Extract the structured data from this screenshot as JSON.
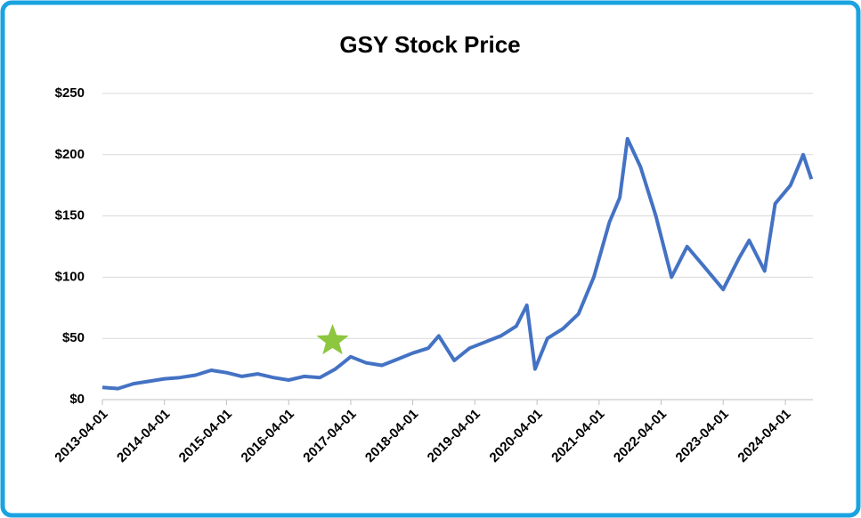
{
  "chart_data": {
    "type": "line",
    "title": "GSY Stock Price",
    "x": [
      "2013-04-01",
      "2013-07-01",
      "2013-10-01",
      "2014-01-01",
      "2014-04-01",
      "2014-07-01",
      "2014-10-01",
      "2015-01-01",
      "2015-04-01",
      "2015-07-01",
      "2015-10-01",
      "2016-01-01",
      "2016-04-01",
      "2016-07-01",
      "2016-10-01",
      "2017-01-01",
      "2017-04-01",
      "2017-07-01",
      "2017-10-01",
      "2018-01-01",
      "2018-04-01",
      "2018-07-01",
      "2018-09-01",
      "2018-12-01",
      "2019-03-01",
      "2019-06-01",
      "2019-09-01",
      "2019-12-01",
      "2020-02-01",
      "2020-03-20",
      "2020-06-01",
      "2020-09-01",
      "2020-12-01",
      "2021-03-01",
      "2021-06-01",
      "2021-08-01",
      "2021-09-15",
      "2021-12-01",
      "2022-03-01",
      "2022-06-01",
      "2022-09-01",
      "2022-12-01",
      "2023-04-01",
      "2023-07-01",
      "2023-09-01",
      "2023-12-01",
      "2024-02-01",
      "2024-05-01",
      "2024-07-15",
      "2024-09-01"
    ],
    "series": [
      {
        "color": "#4472c4",
        "values": [
          10,
          9,
          13,
          15,
          17,
          18,
          20,
          24,
          22,
          19,
          21,
          18,
          16,
          19,
          18,
          25,
          35,
          30,
          28,
          33,
          38,
          42,
          52,
          32,
          42,
          47,
          52,
          60,
          77,
          25,
          50,
          58,
          70,
          100,
          145,
          165,
          213,
          190,
          150,
          100,
          125,
          110,
          90,
          115,
          130,
          105,
          160,
          175,
          200,
          180
        ]
      }
    ],
    "xlim": [
      "2013-04-01",
      "2024-09-10"
    ],
    "xticks": [
      "2013-04-01",
      "2014-04-01",
      "2015-04-01",
      "2016-04-01",
      "2017-04-01",
      "2018-04-01",
      "2019-04-01",
      "2020-04-01",
      "2021-04-01",
      "2022-04-01",
      "2023-04-01",
      "2024-04-01"
    ],
    "ylim": [
      0,
      250
    ],
    "yticks": [
      {
        "value": 0,
        "label": "$0"
      },
      {
        "value": 50,
        "label": "$50"
      },
      {
        "value": 100,
        "label": "$100"
      },
      {
        "value": 150,
        "label": "$150"
      },
      {
        "value": 200,
        "label": "$200"
      },
      {
        "value": 250,
        "label": "$250"
      }
    ],
    "grid": true,
    "marker": {
      "x": "2016-12-15",
      "y": 48,
      "color": "#8dc63f"
    }
  }
}
